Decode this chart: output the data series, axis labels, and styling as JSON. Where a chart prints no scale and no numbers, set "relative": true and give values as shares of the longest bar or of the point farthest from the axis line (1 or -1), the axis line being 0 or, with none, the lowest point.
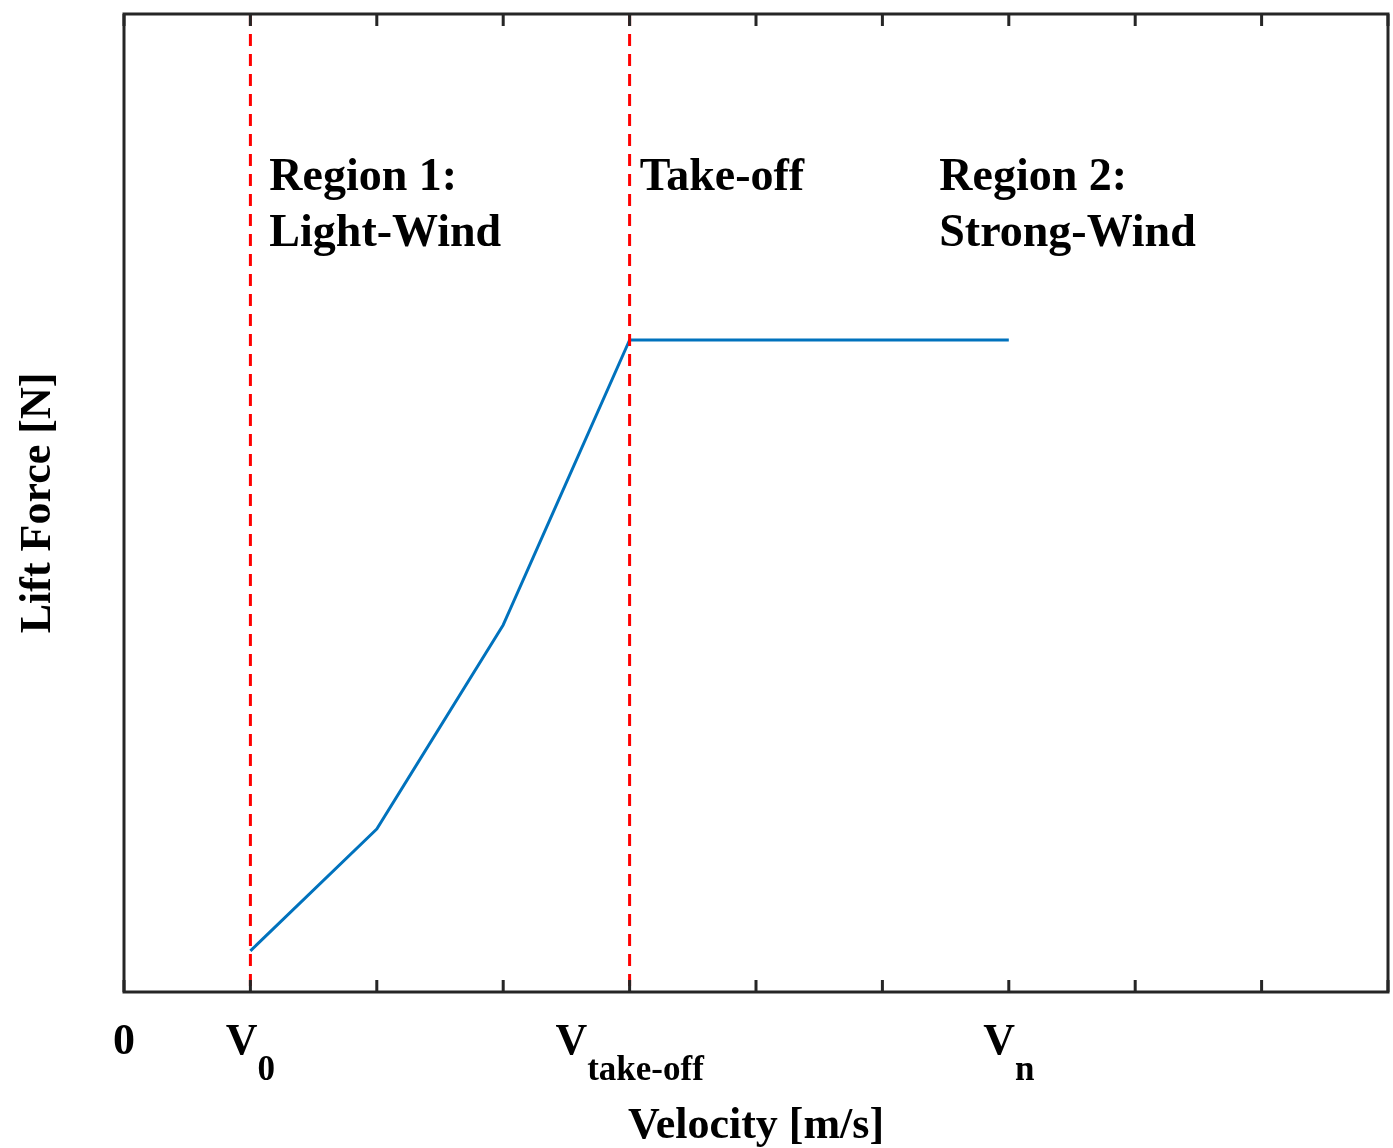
{
  "chart_data": {
    "type": "line",
    "relative": true,
    "xlabel": "Velocity [m/s]",
    "ylabel": "Lift Force [N]",
    "categories": [
      "0",
      "V$_{0}$",
      null,
      null,
      "V$_{take-off}$",
      null,
      null,
      "V$_{n}$",
      null,
      null,
      null
    ],
    "series": [
      {
        "color": "#0072bd",
        "values": [
          null,
          0.063,
          0.25,
          0.563,
          1,
          1,
          1,
          1,
          null,
          null,
          null
        ]
      }
    ],
    "ref_lines": [
      {
        "axis": "x",
        "value": "V$_{0}$",
        "color": "#ff0000",
        "line_style": "dashed"
      },
      {
        "axis": "x",
        "value": "V$_{take-off}$",
        "color": "#ff0000",
        "line_style": "dashed"
      }
    ],
    "annotations": [
      "Region 1:\nLight-Wind",
      "Take-off",
      "Region 2:\nStrong-Wind"
    ],
    "legend": false,
    "line_style": "solid"
  }
}
